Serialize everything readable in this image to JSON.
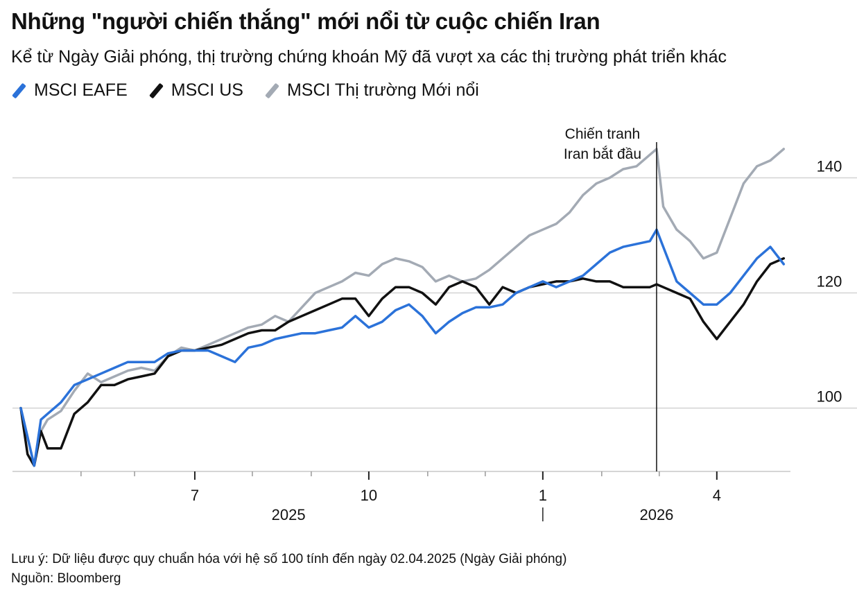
{
  "chart_data": {
    "type": "line",
    "title": "Những \"người chiến thắng\" mới nổi từ cuộc chiến Iran",
    "subtitle": "Kể từ Ngày Giải phóng, thị trường chứng khoán Mỹ đã vượt xa các thị trường phát triển khác",
    "x_unit": "weeks since 2025-04-02 (normalization date)",
    "xlim": [
      0,
      57.5
    ],
    "ylim": [
      89,
      148
    ],
    "y_ticks": [
      {
        "value": 100,
        "label": "100"
      },
      {
        "value": 120,
        "label": "120"
      },
      {
        "value": 140,
        "label": "140"
      }
    ],
    "x_ticks": [
      {
        "value": 13,
        "label": "7"
      },
      {
        "value": 26,
        "label": "10"
      },
      {
        "value": 39,
        "label": "1"
      },
      {
        "value": 52,
        "label": "4"
      }
    ],
    "x_minor_ticks": [
      4.5,
      8.5,
      17.3,
      21.7,
      30.4,
      34.7,
      43.4,
      47.7
    ],
    "year_labels": [
      {
        "x": 20,
        "label": "2025"
      },
      {
        "x": 47.5,
        "label": "2026"
      }
    ],
    "year_divider_x": 39,
    "annotation": {
      "x": 47.5,
      "line1": "Chiến tranh",
      "line2": "Iran bắt đầu"
    },
    "series": [
      {
        "name": "MSCI Thị trường Mới nổi",
        "color": "#a3aab4",
        "x": [
          0,
          0.5,
          1,
          1.5,
          2,
          3,
          4,
          5,
          6,
          7,
          8,
          9,
          10,
          11,
          12,
          13,
          14,
          15,
          16,
          17,
          18,
          19,
          20,
          21,
          22,
          23,
          24,
          25,
          26,
          27,
          28,
          29,
          30,
          31,
          32,
          33,
          34,
          35,
          36,
          37,
          38,
          39,
          40,
          41,
          42,
          43,
          44,
          45,
          46,
          47,
          47.5,
          48,
          49,
          50,
          51,
          52,
          53,
          54,
          55,
          56,
          57
        ],
        "values": [
          100,
          95,
          90,
          96,
          98,
          99.5,
          103,
          106,
          104.5,
          105.5,
          106.5,
          107,
          106.5,
          109,
          110.5,
          110,
          111,
          112,
          113,
          114,
          114.5,
          116,
          115,
          117.5,
          120,
          121,
          122,
          123.5,
          123,
          125,
          126,
          125.5,
          124.5,
          122,
          123,
          122,
          122.5,
          124,
          126,
          128,
          130,
          131,
          132,
          134,
          137,
          139,
          140,
          141.5,
          142,
          144,
          145,
          135,
          131,
          129,
          126,
          127,
          133,
          139,
          142,
          143,
          145
        ]
      },
      {
        "name": "MSCI US",
        "color": "#111111",
        "x": [
          0,
          0.5,
          1,
          1.5,
          2,
          3,
          4,
          5,
          6,
          7,
          8,
          9,
          10,
          11,
          12,
          13,
          14,
          15,
          16,
          17,
          18,
          19,
          20,
          21,
          22,
          23,
          24,
          25,
          26,
          27,
          28,
          29,
          30,
          31,
          32,
          33,
          34,
          35,
          36,
          37,
          38,
          39,
          40,
          41,
          42,
          43,
          44,
          45,
          46,
          47,
          47.5,
          48,
          49,
          50,
          51,
          52,
          53,
          54,
          55,
          56,
          57
        ],
        "values": [
          100,
          92,
          90,
          96,
          93,
          93,
          99,
          101,
          104,
          104,
          105,
          105.5,
          106,
          109,
          110,
          110,
          110.5,
          111,
          112,
          113,
          113.5,
          113.5,
          115,
          116,
          117,
          118,
          119,
          119,
          116,
          119,
          121,
          121,
          120,
          118,
          121,
          122,
          121,
          118,
          121,
          120,
          121,
          121.5,
          122,
          122,
          122.5,
          122,
          122,
          121,
          121,
          121,
          121.5,
          121,
          120,
          119,
          115,
          112,
          115,
          118,
          122,
          125,
          126
        ]
      },
      {
        "name": "MSCI EAFE",
        "color": "#2b72d9",
        "x": [
          0,
          0.5,
          1,
          1.5,
          2,
          3,
          4,
          5,
          6,
          7,
          8,
          9,
          10,
          11,
          12,
          13,
          14,
          15,
          16,
          17,
          18,
          19,
          20,
          21,
          22,
          23,
          24,
          25,
          26,
          27,
          28,
          29,
          30,
          31,
          32,
          33,
          34,
          35,
          36,
          37,
          38,
          39,
          40,
          41,
          42,
          43,
          44,
          45,
          46,
          47,
          47.5,
          48,
          49,
          50,
          51,
          52,
          53,
          54,
          55,
          56,
          57
        ],
        "values": [
          100,
          95,
          90,
          98,
          99,
          101,
          104,
          105,
          106,
          107,
          108,
          108,
          108,
          109.5,
          110,
          110,
          110,
          109,
          108,
          110.5,
          111,
          112,
          112.5,
          113,
          113,
          113.5,
          114,
          116,
          114,
          115,
          117,
          118,
          116,
          113,
          115,
          116.5,
          117.5,
          117.5,
          118,
          120,
          121,
          122,
          121,
          122,
          123,
          125,
          127,
          128,
          128.5,
          129,
          131,
          128,
          122,
          120,
          118,
          118,
          120,
          123,
          126,
          128,
          125
        ]
      }
    ]
  },
  "legend": [
    {
      "label": "MSCI EAFE",
      "color": "#2b72d9"
    },
    {
      "label": "MSCI US",
      "color": "#111111"
    },
    {
      "label": "MSCI Thị trường Mới nổi",
      "color": "#a3aab4"
    }
  ],
  "footer": {
    "note": "Lưu ý: Dữ liệu được quy chuẩn hóa với hệ số 100 tính đến ngày 02.04.2025 (Ngày Giải phóng)",
    "source": "Nguồn: Bloomberg"
  }
}
